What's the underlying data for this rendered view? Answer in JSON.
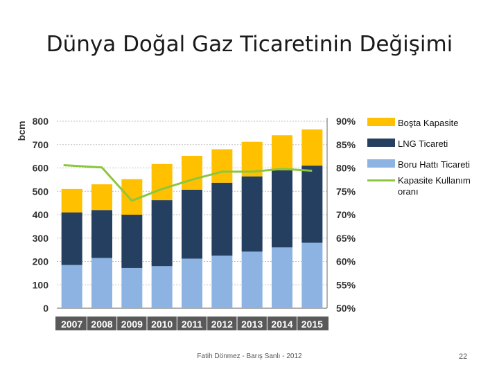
{
  "slide": {
    "title": "Dünya Doğal Gaz Ticaretinin Değişimi",
    "footer": "Fatih Dönmez - Barış Sanlı - 2012",
    "page_number": "22"
  },
  "chart_data": {
    "type": "bar",
    "stacked": true,
    "categories": [
      "2007",
      "2008",
      "2009",
      "2010",
      "2011",
      "2012",
      "2013",
      "2014",
      "2015"
    ],
    "series": [
      {
        "name": "Boru Hattı Ticareti",
        "color": "#8db3e2",
        "values": [
          185,
          215,
          172,
          180,
          212,
          225,
          242,
          260,
          280
        ]
      },
      {
        "name": "LNG  Ticareti",
        "color": "#243f60",
        "values": [
          225,
          205,
          228,
          282,
          295,
          312,
          322,
          330,
          330
        ]
      },
      {
        "name": "Boşta Kapasite",
        "color": "#ffc000",
        "values": [
          100,
          110,
          152,
          155,
          145,
          143,
          148,
          150,
          155
        ]
      }
    ],
    "line_series": {
      "name": "Kapasite Kullanım oranı",
      "color": "#8cc63f",
      "axis": "right",
      "values": [
        80.6,
        80.1,
        73.0,
        75.5,
        77.5,
        79.2,
        79.2,
        79.8,
        79.4
      ]
    },
    "ylabel": "bcm",
    "ylim": [
      0,
      800
    ],
    "y_ticks": [
      "0",
      "100",
      "200",
      "300",
      "400",
      "500",
      "600",
      "700",
      "800"
    ],
    "y2lim": [
      50,
      90
    ],
    "y2_ticks": [
      "50%",
      "55%",
      "60%",
      "65%",
      "70%",
      "75%",
      "80%",
      "85%",
      "90%"
    ],
    "grid": true,
    "legend_position": "right",
    "legend_order": [
      "Boşta Kapasite",
      "LNG  Ticareti",
      "Boru Hattı Ticareti",
      "Kapasite Kullanım oranı"
    ]
  }
}
